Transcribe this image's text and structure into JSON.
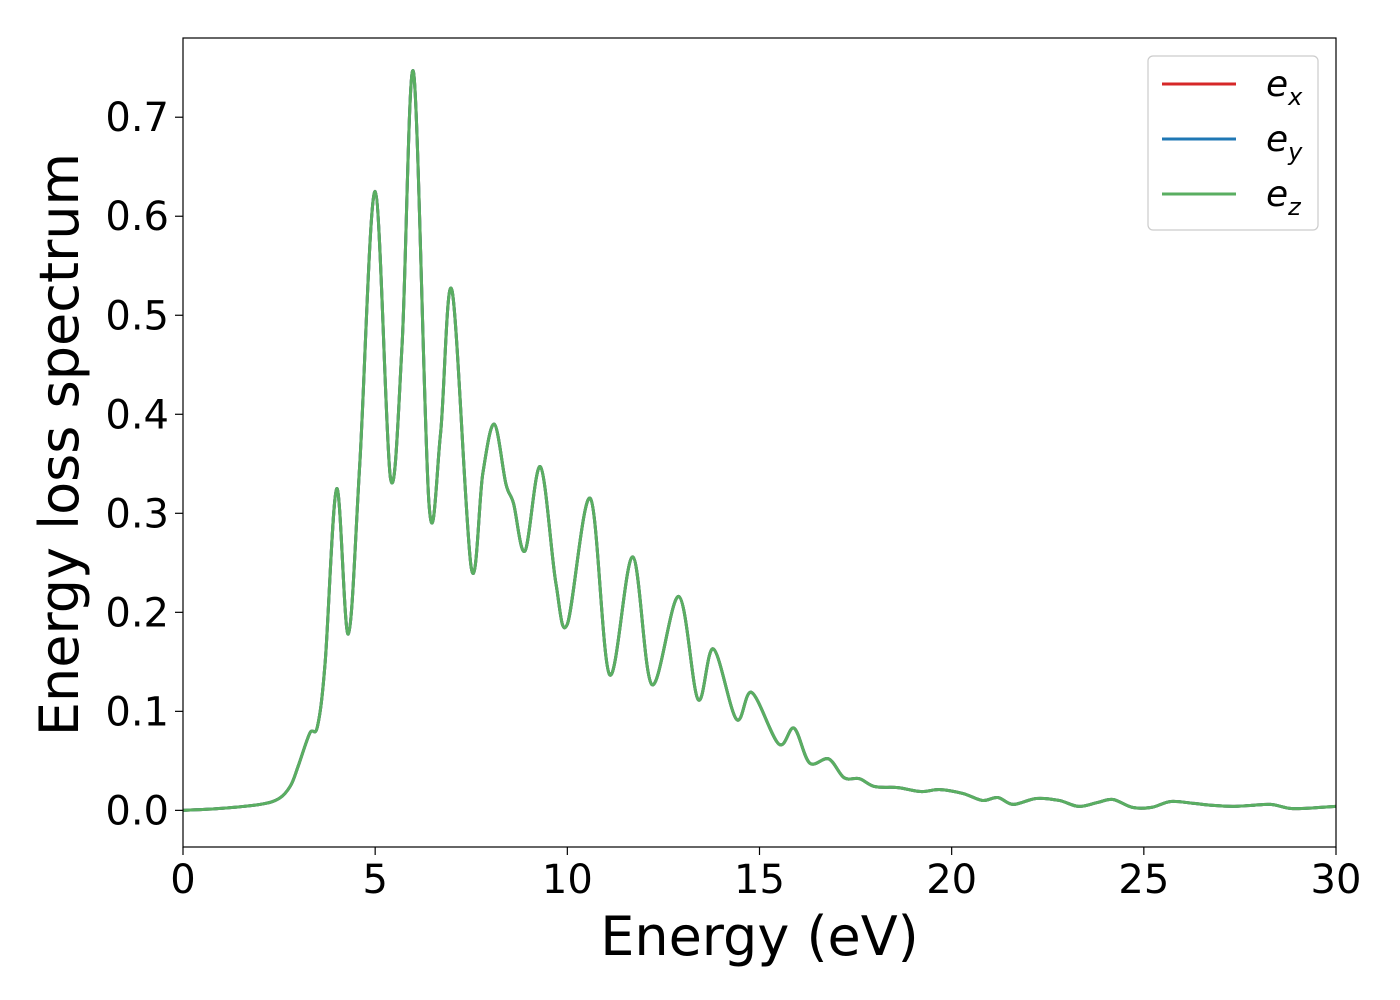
{
  "chart_data": {
    "type": "line",
    "xlabel": "Energy (eV)",
    "ylabel": "Energy loss spectrum",
    "xlim": [
      0,
      30
    ],
    "ylim": [
      -0.037,
      0.78
    ],
    "xticks": [
      0,
      5,
      10,
      15,
      20,
      25,
      30
    ],
    "yticks": [
      0.0,
      0.1,
      0.2,
      0.3,
      0.4,
      0.5,
      0.6,
      0.7
    ],
    "grid": false,
    "legend_position": "top-right",
    "x": [
      0,
      1,
      2,
      2.5,
      2.8,
      3.0,
      3.3,
      3.5,
      3.7,
      4.0,
      4.3,
      4.6,
      5.0,
      5.4,
      5.7,
      6.0,
      6.4,
      6.7,
      7.0,
      7.5,
      7.8,
      8.1,
      8.4,
      8.6,
      8.9,
      9.3,
      9.7,
      10.0,
      10.6,
      11.1,
      11.7,
      12.2,
      12.9,
      13.4,
      13.8,
      14.4,
      14.8,
      15.5,
      15.9,
      16.3,
      16.8,
      17.2,
      17.6,
      18.0,
      18.6,
      19.2,
      19.7,
      20.3,
      20.8,
      21.2,
      21.6,
      22.2,
      22.8,
      23.3,
      23.8,
      24.2,
      24.7,
      25.2,
      25.7,
      26.3,
      26.8,
      27.3,
      27.8,
      28.3,
      28.8,
      29.2,
      29.6,
      30.0
    ],
    "series": [
      {
        "name": "e_x",
        "color": "#d62728",
        "y": [
          0.0,
          0.002,
          0.006,
          0.012,
          0.025,
          0.045,
          0.078,
          0.085,
          0.15,
          0.325,
          0.178,
          0.35,
          0.625,
          0.335,
          0.47,
          0.745,
          0.31,
          0.38,
          0.525,
          0.245,
          0.34,
          0.39,
          0.33,
          0.31,
          0.262,
          0.347,
          0.23,
          0.188,
          0.315,
          0.137,
          0.256,
          0.127,
          0.216,
          0.112,
          0.163,
          0.092,
          0.119,
          0.067,
          0.083,
          0.048,
          0.052,
          0.033,
          0.032,
          0.024,
          0.023,
          0.019,
          0.021,
          0.017,
          0.01,
          0.013,
          0.006,
          0.012,
          0.01,
          0.004,
          0.008,
          0.011,
          0.003,
          0.003,
          0.009,
          0.007,
          0.005,
          0.004,
          0.005,
          0.006,
          0.002,
          0.002,
          0.003,
          0.004
        ]
      },
      {
        "name": "e_y",
        "color": "#1f77b4",
        "y": [
          0.0,
          0.002,
          0.006,
          0.012,
          0.025,
          0.045,
          0.078,
          0.085,
          0.15,
          0.325,
          0.178,
          0.35,
          0.625,
          0.335,
          0.47,
          0.745,
          0.31,
          0.38,
          0.525,
          0.245,
          0.34,
          0.39,
          0.33,
          0.31,
          0.262,
          0.347,
          0.23,
          0.188,
          0.315,
          0.137,
          0.256,
          0.127,
          0.216,
          0.112,
          0.163,
          0.092,
          0.119,
          0.067,
          0.083,
          0.048,
          0.052,
          0.033,
          0.032,
          0.024,
          0.023,
          0.019,
          0.021,
          0.017,
          0.01,
          0.013,
          0.006,
          0.012,
          0.01,
          0.004,
          0.008,
          0.011,
          0.003,
          0.003,
          0.009,
          0.007,
          0.005,
          0.004,
          0.005,
          0.006,
          0.002,
          0.002,
          0.003,
          0.004
        ]
      },
      {
        "name": "e_z",
        "color": "#5aae61",
        "y": [
          0.0,
          0.002,
          0.006,
          0.012,
          0.025,
          0.045,
          0.078,
          0.085,
          0.15,
          0.325,
          0.178,
          0.35,
          0.625,
          0.335,
          0.47,
          0.745,
          0.31,
          0.38,
          0.525,
          0.245,
          0.34,
          0.39,
          0.33,
          0.31,
          0.262,
          0.347,
          0.23,
          0.188,
          0.315,
          0.137,
          0.256,
          0.127,
          0.216,
          0.112,
          0.163,
          0.092,
          0.119,
          0.067,
          0.083,
          0.048,
          0.052,
          0.033,
          0.032,
          0.024,
          0.023,
          0.019,
          0.021,
          0.017,
          0.01,
          0.013,
          0.006,
          0.012,
          0.01,
          0.004,
          0.008,
          0.011,
          0.003,
          0.003,
          0.009,
          0.007,
          0.005,
          0.004,
          0.005,
          0.006,
          0.002,
          0.002,
          0.003,
          0.004
        ]
      }
    ],
    "legend": [
      {
        "base": "e",
        "sub": "x",
        "color": "#d62728"
      },
      {
        "base": "e",
        "sub": "y",
        "color": "#1f77b4"
      },
      {
        "base": "e",
        "sub": "z",
        "color": "#5aae61"
      }
    ]
  }
}
